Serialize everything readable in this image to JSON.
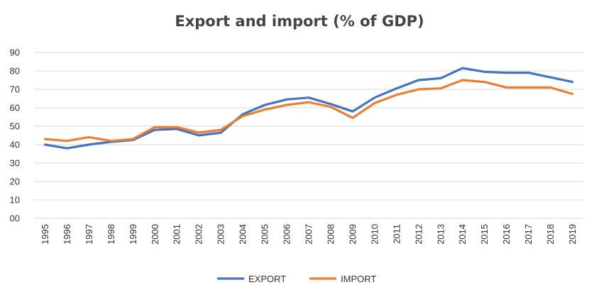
{
  "chart_data": {
    "type": "line",
    "title": "Export and import (% of GDP)",
    "xlabel": "",
    "ylabel": "",
    "ylim": [
      0,
      90
    ],
    "y_ticks": [
      "00",
      "10",
      "20",
      "30",
      "40",
      "50",
      "60",
      "70",
      "80",
      "90"
    ],
    "grid": "horizontal",
    "legend_position": "bottom",
    "categories": [
      "1995",
      "1996",
      "1997",
      "1998",
      "1999",
      "2000",
      "2001",
      "2002",
      "2003",
      "2004",
      "2005",
      "2006",
      "2007",
      "2008",
      "2009",
      "2010",
      "2011",
      "2012",
      "2013",
      "2014",
      "2015",
      "2016",
      "2017",
      "2018",
      "2019"
    ],
    "series": [
      {
        "name": "EXPORT",
        "color": "#4472c4",
        "values": [
          40,
          38,
          40,
          41.5,
          42.5,
          48,
          48.5,
          45,
          46.5,
          56.5,
          61.5,
          64.5,
          65.5,
          62,
          58,
          65.5,
          70.5,
          75,
          76,
          81.5,
          79.5,
          79,
          79,
          76.5,
          74
        ]
      },
      {
        "name": "IMPORT",
        "color": "#ed7d31",
        "values": [
          43,
          42,
          44,
          42,
          43,
          49.5,
          49.5,
          46.5,
          48,
          55.5,
          59,
          61.5,
          63,
          60.5,
          54.5,
          62.5,
          67,
          70,
          70.5,
          75,
          74,
          71,
          71,
          71,
          67.5
        ]
      }
    ]
  }
}
